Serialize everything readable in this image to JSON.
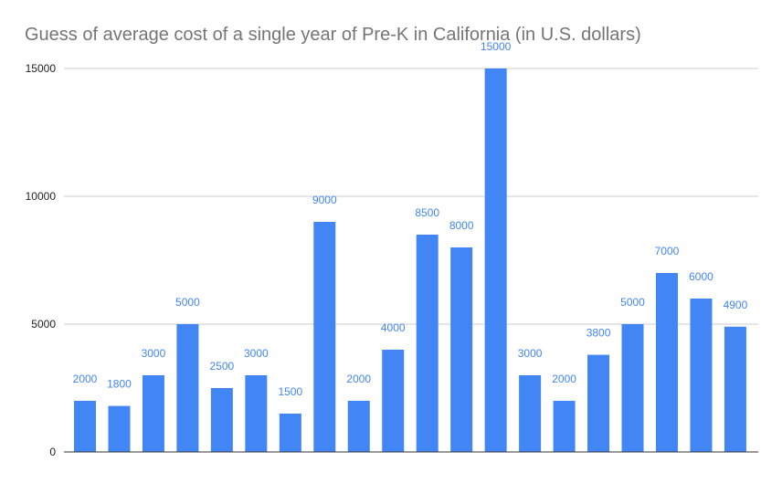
{
  "colors": {
    "bar": "#4285f4",
    "data_label": "#4285f4",
    "grid": "#cccccc",
    "axis": "#333333",
    "title": "#757575"
  },
  "chart_data": {
    "type": "bar",
    "title": "Guess of average cost of a single year of Pre-K in California (in U.S. dollars)",
    "xlabel": "",
    "ylabel": "",
    "ylim": [
      0,
      15000
    ],
    "yticks": [
      0,
      5000,
      10000,
      15000
    ],
    "grid": true,
    "legend": "none",
    "series": [
      {
        "values": [
          2000,
          1800,
          3000,
          5000,
          2500,
          3000,
          1500,
          9000,
          2000,
          4000,
          8500,
          8000,
          15000,
          3000,
          2000,
          3800,
          5000,
          7000,
          6000,
          4900
        ]
      }
    ]
  }
}
